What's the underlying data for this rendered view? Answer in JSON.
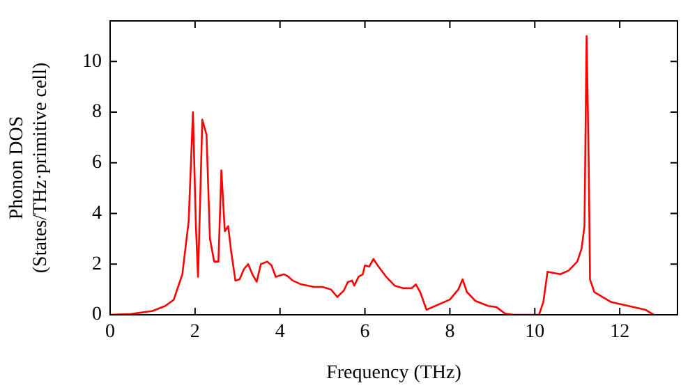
{
  "chart_data": {
    "type": "line",
    "xlabel": "Frequency (THz)",
    "ylabel": "Phonon DOS\n(States/THz·primitive cell)",
    "xlim": [
      0,
      13.36
    ],
    "xticks": [
      0,
      2,
      4,
      6,
      8,
      10,
      12
    ],
    "ylim": [
      0,
      11.6
    ],
    "yticks": [
      0,
      2,
      4,
      6,
      8,
      10
    ],
    "marker": "none",
    "line_style": "solid",
    "legend": false,
    "series": [
      {
        "color": "#ff0000",
        "x": [
          0,
          0.5,
          1.0,
          1.3,
          1.5,
          1.7,
          1.85,
          1.95,
          2.02,
          2.07,
          2.12,
          2.17,
          2.27,
          2.35,
          2.45,
          2.55,
          2.62,
          2.7,
          2.78,
          2.85,
          2.95,
          3.05,
          3.15,
          3.25,
          3.35,
          3.45,
          3.55,
          3.7,
          3.8,
          3.9,
          4.0,
          4.1,
          4.2,
          4.3,
          4.5,
          4.8,
          5.0,
          5.2,
          5.35,
          5.5,
          5.6,
          5.7,
          5.75,
          5.85,
          5.95,
          6.0,
          6.1,
          6.2,
          6.3,
          6.5,
          6.7,
          6.9,
          7.1,
          7.2,
          7.3,
          7.45,
          8.0,
          8.2,
          8.3,
          8.4,
          8.6,
          8.9,
          9.1,
          9.3,
          9.5,
          10.1,
          10.2,
          10.3,
          10.45,
          10.6,
          10.8,
          11.0,
          11.1,
          11.17,
          11.22,
          11.27,
          11.3,
          11.4,
          11.6,
          11.8,
          12.2,
          12.6,
          12.75,
          12.8
        ],
        "values": [
          0,
          0.03,
          0.15,
          0.35,
          0.6,
          1.6,
          3.7,
          8.0,
          3.5,
          1.5,
          4.5,
          7.7,
          7.1,
          3.0,
          2.1,
          2.1,
          5.7,
          3.3,
          3.5,
          2.5,
          1.35,
          1.4,
          1.8,
          2.0,
          1.6,
          1.3,
          2.0,
          2.1,
          1.95,
          1.5,
          1.55,
          1.6,
          1.5,
          1.35,
          1.2,
          1.1,
          1.1,
          1.0,
          0.7,
          0.95,
          1.3,
          1.35,
          1.15,
          1.5,
          1.6,
          1.95,
          1.9,
          2.2,
          1.95,
          1.5,
          1.15,
          1.05,
          1.05,
          1.2,
          0.9,
          0.2,
          0.6,
          1.0,
          1.4,
          0.9,
          0.55,
          0.35,
          0.3,
          0.05,
          0,
          0,
          0.5,
          1.7,
          1.65,
          1.6,
          1.75,
          2.1,
          2.6,
          3.5,
          11.0,
          6.0,
          1.4,
          0.9,
          0.7,
          0.5,
          0.35,
          0.2,
          0.05,
          0
        ]
      }
    ]
  }
}
